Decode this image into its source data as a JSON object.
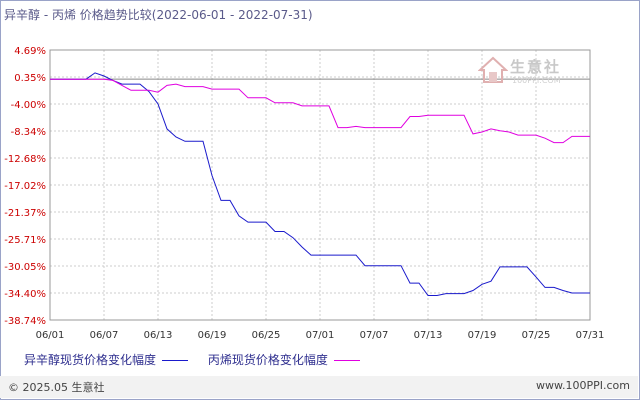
{
  "title": "异辛醇 - 丙烯 价格趋势比较(2022-06-01 - 2022-07-31)",
  "watermark": {
    "brand": "生意社",
    "url": "100PPI.COM"
  },
  "legend": [
    {
      "label": "异辛醇现货价格变化幅度",
      "color": "#1a1acc"
    },
    {
      "label": "丙烯现货价格变化幅度",
      "color": "#e000e0"
    }
  ],
  "footer": {
    "copyright": "© 2025.05 生意社",
    "site": "www.100PPI.com"
  },
  "colors": {
    "axis_labels": "#cc0000",
    "grid": "#cccccc",
    "zero_line": "#888888"
  },
  "chart_data": {
    "type": "line",
    "title": "异辛醇 - 丙烯 价格趋势比较(2022-06-01 - 2022-07-31)",
    "xlabel": "",
    "ylabel": "",
    "y_ticks": [
      "4.69%",
      "0.35%",
      "-4.00%",
      "-8.34%",
      "-12.68%",
      "-17.02%",
      "-21.37%",
      "-25.71%",
      "-30.05%",
      "-34.40%",
      "-38.74%"
    ],
    "y_tick_values": [
      4.69,
      0.35,
      -4.0,
      -8.34,
      -12.68,
      -17.02,
      -21.37,
      -25.71,
      -30.05,
      -34.4,
      -38.74
    ],
    "ylim": [
      -38.74,
      4.69
    ],
    "x_ticks": [
      "06/01",
      "06/07",
      "06/13",
      "06/19",
      "06/25",
      "07/01",
      "07/07",
      "07/13",
      "07/19",
      "07/25",
      "07/31"
    ],
    "x_days": 61,
    "grid": true,
    "legend_position": "bottom",
    "series": [
      {
        "name": "异辛醇现货价格变化幅度",
        "color": "#1a1acc",
        "points": [
          [
            0,
            0
          ],
          [
            3,
            0
          ],
          [
            4,
            0
          ],
          [
            5,
            1.0
          ],
          [
            6,
            0.5
          ],
          [
            7,
            -0.2
          ],
          [
            8,
            -0.8
          ],
          [
            9,
            -0.8
          ],
          [
            10,
            -0.8
          ],
          [
            11,
            -2.0
          ],
          [
            12,
            -4.0
          ],
          [
            13,
            -8.0
          ],
          [
            14,
            -9.3
          ],
          [
            15,
            -10.0
          ],
          [
            16,
            -10.0
          ],
          [
            17,
            -10.0
          ],
          [
            18,
            -15.5
          ],
          [
            19,
            -19.5
          ],
          [
            20,
            -19.5
          ],
          [
            21,
            -22.0
          ],
          [
            22,
            -23.0
          ],
          [
            23,
            -23.0
          ],
          [
            24,
            -23.0
          ],
          [
            25,
            -24.5
          ],
          [
            26,
            -24.5
          ],
          [
            27,
            -25.5
          ],
          [
            28,
            -27.0
          ],
          [
            29,
            -28.3
          ],
          [
            30,
            -28.3
          ],
          [
            31,
            -28.3
          ],
          [
            32,
            -28.3
          ],
          [
            33,
            -28.3
          ],
          [
            34,
            -28.3
          ],
          [
            35,
            -30.0
          ],
          [
            36,
            -30.0
          ],
          [
            37,
            -30.0
          ],
          [
            38,
            -30.0
          ],
          [
            39,
            -30.0
          ],
          [
            40,
            -32.8
          ],
          [
            41,
            -32.8
          ],
          [
            42,
            -34.8
          ],
          [
            43,
            -34.8
          ],
          [
            44,
            -34.5
          ],
          [
            45,
            -34.5
          ],
          [
            46,
            -34.5
          ],
          [
            47,
            -34.0
          ],
          [
            48,
            -33.0
          ],
          [
            49,
            -32.5
          ],
          [
            50,
            -30.2
          ],
          [
            51,
            -30.2
          ],
          [
            52,
            -30.2
          ],
          [
            53,
            -30.2
          ],
          [
            54,
            -31.8
          ],
          [
            55,
            -33.5
          ],
          [
            56,
            -33.5
          ],
          [
            57,
            -34.0
          ],
          [
            58,
            -34.4
          ],
          [
            59,
            -34.4
          ],
          [
            60,
            -34.4
          ]
        ]
      },
      {
        "name": "丙烯现货价格变化幅度",
        "color": "#e000e0",
        "points": [
          [
            0,
            0
          ],
          [
            4,
            0
          ],
          [
            5,
            0
          ],
          [
            6,
            0
          ],
          [
            7,
            -0.2
          ],
          [
            8,
            -1.0
          ],
          [
            9,
            -1.8
          ],
          [
            10,
            -1.8
          ],
          [
            11,
            -1.8
          ],
          [
            12,
            -2.1
          ],
          [
            13,
            -1.0
          ],
          [
            14,
            -0.8
          ],
          [
            15,
            -1.2
          ],
          [
            16,
            -1.2
          ],
          [
            17,
            -1.2
          ],
          [
            18,
            -1.6
          ],
          [
            19,
            -1.6
          ],
          [
            20,
            -1.6
          ],
          [
            21,
            -1.6
          ],
          [
            22,
            -3.0
          ],
          [
            23,
            -3.0
          ],
          [
            24,
            -3.0
          ],
          [
            25,
            -3.8
          ],
          [
            26,
            -3.8
          ],
          [
            27,
            -3.8
          ],
          [
            28,
            -4.3
          ],
          [
            29,
            -4.3
          ],
          [
            30,
            -4.3
          ],
          [
            31,
            -4.3
          ],
          [
            32,
            -7.8
          ],
          [
            33,
            -7.8
          ],
          [
            34,
            -7.6
          ],
          [
            35,
            -7.8
          ],
          [
            36,
            -7.8
          ],
          [
            37,
            -7.8
          ],
          [
            38,
            -7.8
          ],
          [
            39,
            -7.8
          ],
          [
            40,
            -6.0
          ],
          [
            41,
            -6.0
          ],
          [
            42,
            -5.8
          ],
          [
            43,
            -5.8
          ],
          [
            44,
            -5.8
          ],
          [
            45,
            -5.8
          ],
          [
            46,
            -5.8
          ],
          [
            47,
            -8.8
          ],
          [
            48,
            -8.5
          ],
          [
            49,
            -8.0
          ],
          [
            50,
            -8.3
          ],
          [
            51,
            -8.5
          ],
          [
            52,
            -9.0
          ],
          [
            53,
            -9.0
          ],
          [
            54,
            -9.0
          ],
          [
            55,
            -9.5
          ],
          [
            56,
            -10.2
          ],
          [
            57,
            -10.2
          ],
          [
            58,
            -9.2
          ],
          [
            59,
            -9.2
          ],
          [
            60,
            -9.2
          ]
        ]
      }
    ]
  }
}
